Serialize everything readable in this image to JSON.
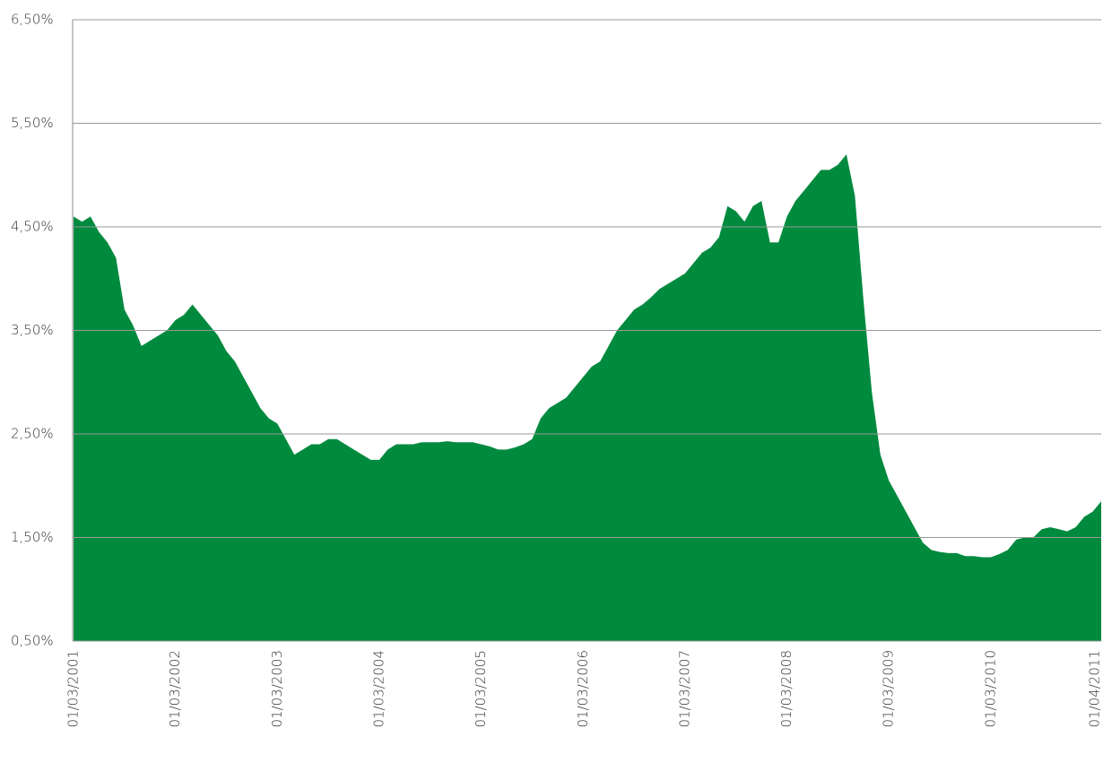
{
  "chart_data": {
    "type": "area",
    "color": "#008a3e",
    "grid": true,
    "ylim": [
      0.5,
      6.5
    ],
    "yticks": [
      {
        "value": 0.5,
        "label": "0,50%"
      },
      {
        "value": 1.5,
        "label": "1,50%"
      },
      {
        "value": 2.5,
        "label": "2,50%"
      },
      {
        "value": 3.5,
        "label": "3,50%"
      },
      {
        "value": 4.5,
        "label": "4,50%"
      },
      {
        "value": 5.5,
        "label": "5,50%"
      },
      {
        "value": 6.5,
        "label": "6,50%"
      }
    ],
    "categories": [
      "01/03/2001",
      null,
      null,
      null,
      null,
      null,
      null,
      null,
      null,
      null,
      null,
      null,
      "01/03/2002",
      null,
      null,
      null,
      null,
      null,
      null,
      null,
      null,
      null,
      null,
      null,
      "01/03/2003",
      null,
      null,
      null,
      null,
      null,
      null,
      null,
      null,
      null,
      null,
      null,
      "01/03/2004",
      null,
      null,
      null,
      null,
      null,
      null,
      null,
      null,
      null,
      null,
      null,
      "01/03/2005",
      null,
      null,
      null,
      null,
      null,
      null,
      null,
      null,
      null,
      null,
      null,
      "01/03/2006",
      null,
      null,
      null,
      null,
      null,
      null,
      null,
      null,
      null,
      null,
      null,
      "01/03/2007",
      null,
      null,
      null,
      null,
      null,
      null,
      null,
      null,
      null,
      null,
      null,
      "01/03/2008",
      null,
      null,
      null,
      null,
      null,
      null,
      null,
      null,
      null,
      null,
      null,
      "01/03/2009",
      null,
      null,
      null,
      null,
      null,
      null,
      null,
      null,
      null,
      null,
      null,
      "01/03/2010",
      null,
      null,
      null,
      null,
      null,
      null,
      null,
      null,
      null,
      null,
      null,
      null,
      "01/04/2011"
    ],
    "values": [
      4.6,
      4.55,
      4.6,
      4.45,
      4.35,
      4.2,
      3.7,
      3.55,
      3.35,
      3.4,
      3.45,
      3.5,
      3.6,
      3.65,
      3.75,
      3.65,
      3.55,
      3.45,
      3.3,
      3.2,
      3.05,
      2.9,
      2.75,
      2.65,
      2.6,
      2.45,
      2.3,
      2.35,
      2.4,
      2.4,
      2.45,
      2.45,
      2.4,
      2.35,
      2.3,
      2.25,
      2.25,
      2.35,
      2.4,
      2.4,
      2.4,
      2.42,
      2.42,
      2.42,
      2.43,
      2.42,
      2.42,
      2.42,
      2.4,
      2.38,
      2.35,
      2.35,
      2.37,
      2.4,
      2.45,
      2.65,
      2.75,
      2.8,
      2.85,
      2.95,
      3.05,
      3.15,
      3.2,
      3.35,
      3.5,
      3.6,
      3.7,
      3.75,
      3.82,
      3.9,
      3.95,
      4.0,
      4.05,
      4.15,
      4.25,
      4.3,
      4.4,
      4.7,
      4.65,
      4.55,
      4.7,
      4.75,
      4.35,
      4.35,
      4.6,
      4.75,
      4.85,
      4.95,
      5.05,
      5.05,
      5.1,
      5.2,
      4.8,
      3.8,
      2.9,
      2.3,
      2.05,
      1.9,
      1.75,
      1.6,
      1.45,
      1.38,
      1.36,
      1.35,
      1.35,
      1.32,
      1.32,
      1.31,
      1.31,
      1.34,
      1.38,
      1.48,
      1.5,
      1.5,
      1.58,
      1.6,
      1.58,
      1.56,
      1.6,
      1.7,
      1.75,
      1.85
    ]
  }
}
